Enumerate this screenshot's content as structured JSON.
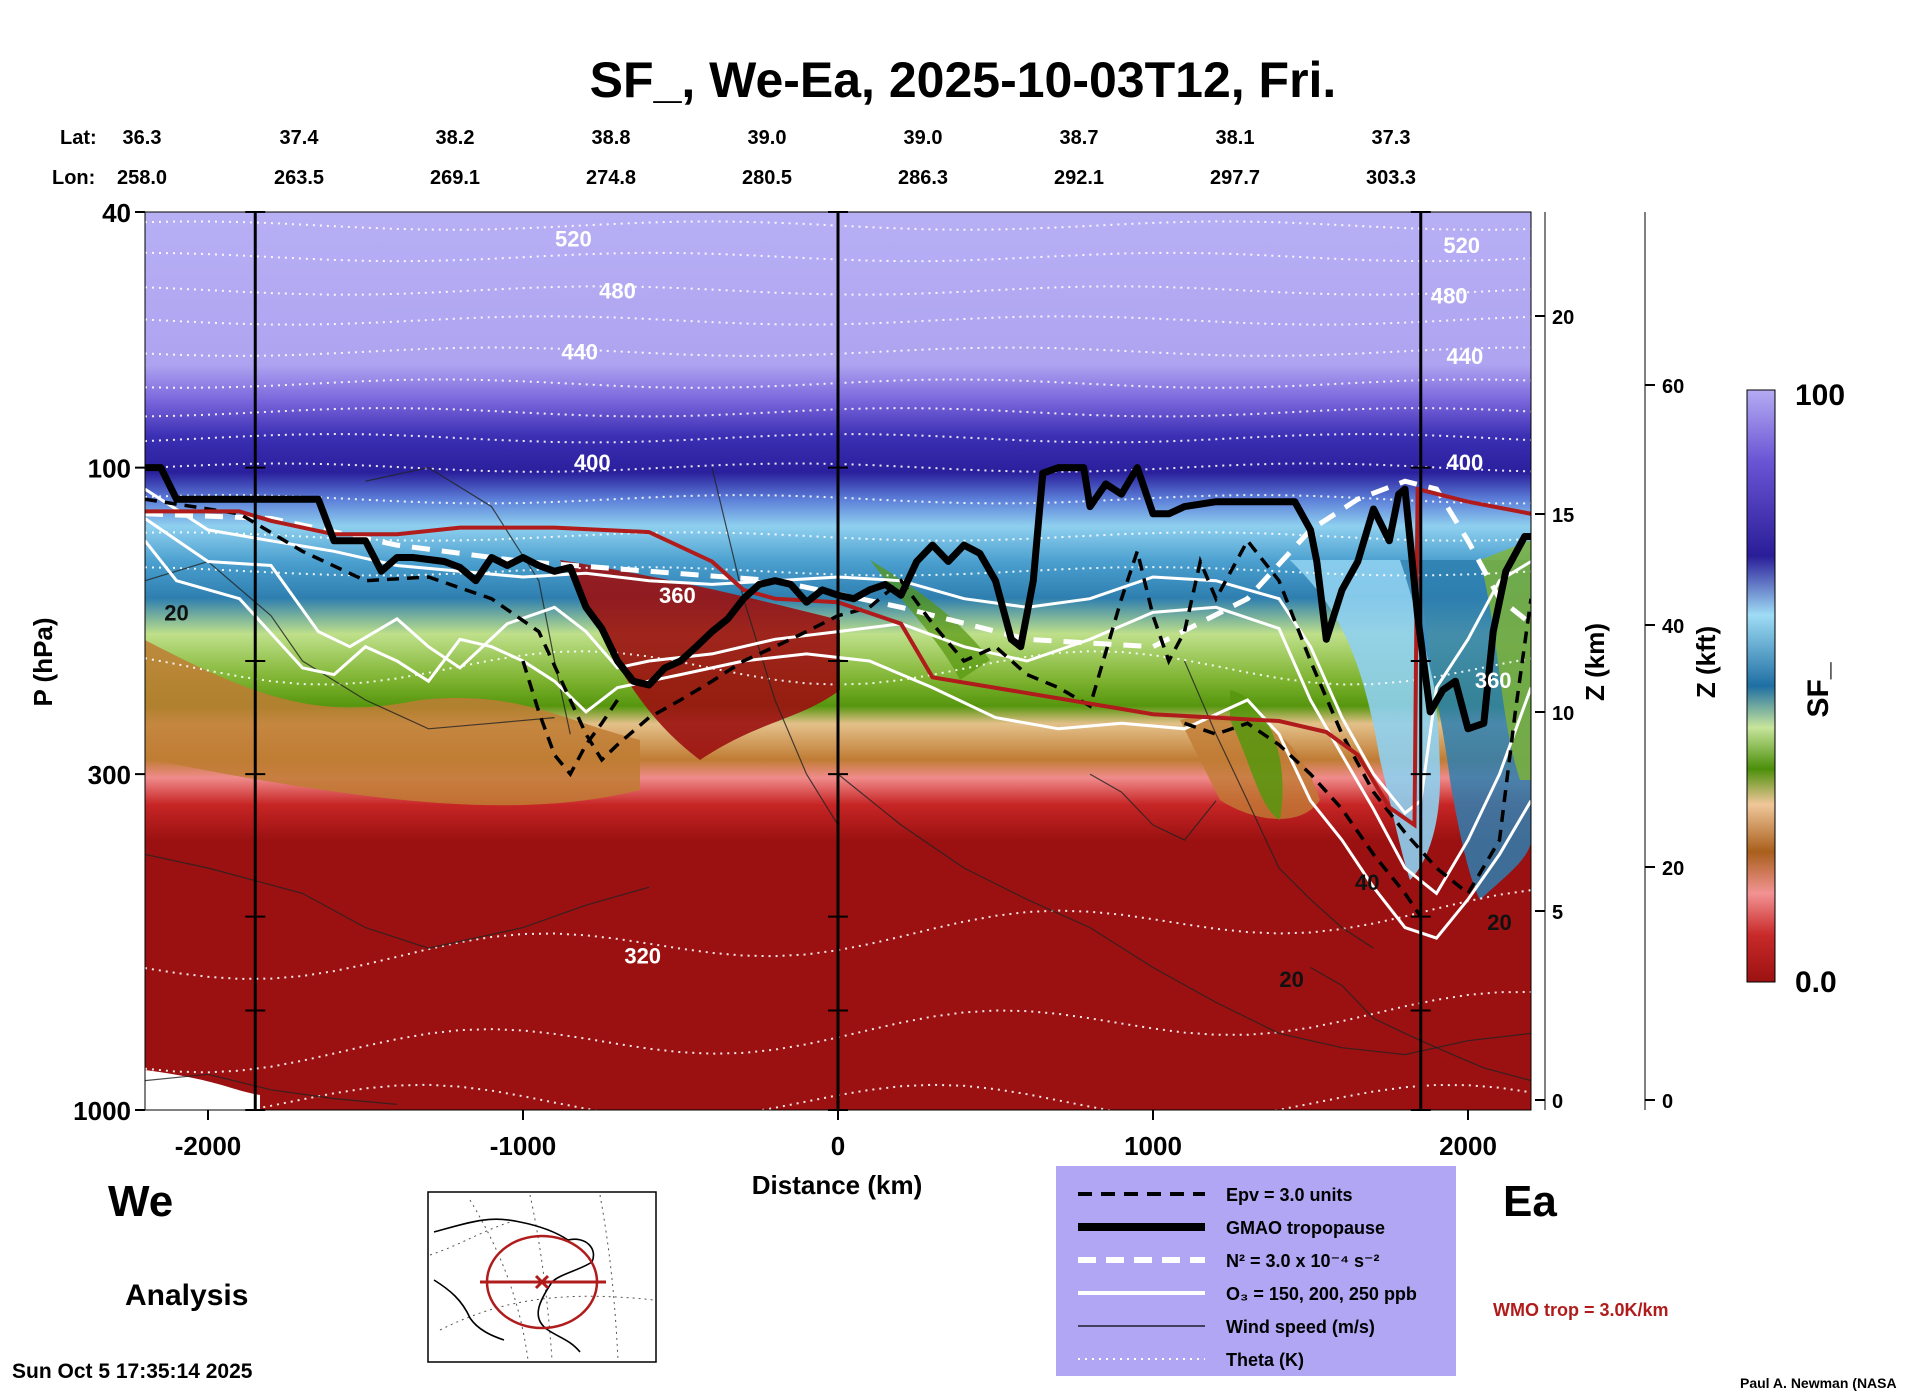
{
  "title": "SF_, We-Ea, 2025-10-03T12, Fri.",
  "lat_label": "Lat:",
  "lon_label": "Lon:",
  "positions": [
    {
      "lat": "36.3",
      "lon": "258.0"
    },
    {
      "lat": "37.4",
      "lon": "263.5"
    },
    {
      "lat": "38.2",
      "lon": "269.1"
    },
    {
      "lat": "38.8",
      "lon": "274.8"
    },
    {
      "lat": "39.0",
      "lon": "280.5"
    },
    {
      "lat": "39.0",
      "lon": "286.3"
    },
    {
      "lat": "38.7",
      "lon": "292.1"
    },
    {
      "lat": "38.1",
      "lon": "297.7"
    },
    {
      "lat": "37.3",
      "lon": "303.3"
    }
  ],
  "side_labels": {
    "west": "We",
    "east": "Ea"
  },
  "analysis_label": "Analysis",
  "timestamp": "Sun Oct  5 17:35:14 2025",
  "credit": "Paul A. Newman (NASA",
  "wmo_label": "WMO trop = 3.0K/km",
  "colors": {
    "background_top": "#b0a6f3",
    "stratosphere": "#3b2fb3",
    "troposphere": "#9b1111",
    "legend_bg": "#b0a6f3",
    "wmo": "#b01c1c"
  },
  "legend": [
    {
      "label": "Epv = 3.0 units",
      "style": "dashed-black"
    },
    {
      "label": "GMAO tropopause",
      "style": "thick-black"
    },
    {
      "label": "N² = 3.0 x 10⁻⁴ s⁻²",
      "style": "dashed-white"
    },
    {
      "label": "O₃ = 150, 200, 250 ppb",
      "style": "solid-white"
    },
    {
      "label": "Wind speed (m/s)",
      "style": "thin-black"
    },
    {
      "label": "Theta (K)",
      "style": "dotted-white"
    }
  ],
  "chart_data": {
    "type": "heatmap",
    "title": "SF_, We-Ea, 2025-10-03T12, Fri.",
    "xlabel": "Distance (km)",
    "ylabel": "P (hPa)",
    "y2label": "Z (km)",
    "y3label": "Z (kft)",
    "xlim": [
      -2200,
      2200
    ],
    "ylim": [
      1000,
      40
    ],
    "y_scale": "log",
    "x_ticks": [
      "-2000",
      "-1000",
      "0",
      "1000",
      "2000"
    ],
    "x_tick_values": [
      -2000,
      -1000,
      0,
      1000,
      2000
    ],
    "p_ticks": [
      "40",
      "100",
      "300",
      "1000"
    ],
    "p_tick_values": [
      40,
      100,
      300,
      1000
    ],
    "z_km_ticks": [
      "0",
      "5",
      "10",
      "15",
      "20"
    ],
    "z_kft_ticks": [
      "0",
      "20",
      "40",
      "60"
    ],
    "vertical_lines_km": [
      -1850,
      0,
      1850
    ],
    "colorbar": {
      "label": "SF_",
      "min": "0.0",
      "max": "100"
    },
    "theta_labels": [
      {
        "text": "520",
        "x": -840,
        "p": 44
      },
      {
        "text": "520",
        "x": 1980,
        "p": 45
      },
      {
        "text": "480",
        "x": -700,
        "p": 53
      },
      {
        "text": "480",
        "x": 1940,
        "p": 54
      },
      {
        "text": "440",
        "x": -820,
        "p": 66
      },
      {
        "text": "440",
        "x": 1990,
        "p": 67
      },
      {
        "text": "400",
        "x": -780,
        "p": 98
      },
      {
        "text": "400",
        "x": 1990,
        "p": 98
      },
      {
        "text": "360",
        "x": -510,
        "p": 158
      },
      {
        "text": "360",
        "x": 2080,
        "p": 214
      },
      {
        "text": "320",
        "x": -620,
        "p": 575
      }
    ],
    "wind_labels": [
      {
        "text": "20",
        "x": -2100,
        "p": 168
      },
      {
        "text": "40",
        "x": 1680,
        "p": 442
      },
      {
        "text": "20",
        "x": 1440,
        "p": 625
      },
      {
        "text": "20",
        "x": 2100,
        "p": 510
      }
    ],
    "tropopause_gmao": [
      [
        -2200,
        100
      ],
      [
        -2150,
        100
      ],
      [
        -2100,
        112
      ],
      [
        -1650,
        112
      ],
      [
        -1600,
        130
      ],
      [
        -1500,
        130
      ],
      [
        -1450,
        145
      ],
      [
        -1400,
        138
      ],
      [
        -1350,
        138
      ],
      [
        -1250,
        140
      ],
      [
        -1200,
        143
      ],
      [
        -1150,
        150
      ],
      [
        -1100,
        138
      ],
      [
        -1050,
        142
      ],
      [
        -1000,
        138
      ],
      [
        -950,
        142
      ],
      [
        -900,
        145
      ],
      [
        -850,
        143
      ],
      [
        -800,
        165
      ],
      [
        -750,
        178
      ],
      [
        -700,
        200
      ],
      [
        -650,
        215
      ],
      [
        -600,
        218
      ],
      [
        -550,
        205
      ],
      [
        -500,
        200
      ],
      [
        -450,
        190
      ],
      [
        -400,
        180
      ],
      [
        -350,
        172
      ],
      [
        -300,
        160
      ],
      [
        -250,
        152
      ],
      [
        -200,
        150
      ],
      [
        -150,
        152
      ],
      [
        -100,
        162
      ],
      [
        -50,
        155
      ],
      [
        0,
        158
      ],
      [
        50,
        160
      ],
      [
        100,
        155
      ],
      [
        150,
        152
      ],
      [
        200,
        158
      ],
      [
        250,
        140
      ],
      [
        300,
        132
      ],
      [
        350,
        140
      ],
      [
        400,
        132
      ],
      [
        450,
        136
      ],
      [
        500,
        150
      ],
      [
        550,
        185
      ],
      [
        580,
        190
      ],
      [
        620,
        150
      ],
      [
        650,
        102
      ],
      [
        700,
        100
      ],
      [
        780,
        100
      ],
      [
        800,
        115
      ],
      [
        850,
        106
      ],
      [
        900,
        110
      ],
      [
        950,
        100
      ],
      [
        1000,
        118
      ],
      [
        1050,
        118
      ],
      [
        1100,
        115
      ],
      [
        1200,
        113
      ],
      [
        1300,
        113
      ],
      [
        1450,
        113
      ],
      [
        1500,
        125
      ],
      [
        1520,
        140
      ],
      [
        1550,
        185
      ],
      [
        1600,
        155
      ],
      [
        1650,
        140
      ],
      [
        1700,
        116
      ],
      [
        1750,
        130
      ],
      [
        1780,
        110
      ],
      [
        1800,
        108
      ],
      [
        1840,
        170
      ],
      [
        1880,
        240
      ],
      [
        1920,
        222
      ],
      [
        1960,
        215
      ],
      [
        2000,
        255
      ],
      [
        2050,
        250
      ],
      [
        2080,
        180
      ],
      [
        2120,
        145
      ],
      [
        2180,
        128
      ],
      [
        2200,
        128
      ]
    ],
    "tropopause_wmo": [
      [
        -2200,
        117
      ],
      [
        -1900,
        117
      ],
      [
        -1800,
        121
      ],
      [
        -1600,
        127
      ],
      [
        -1400,
        127
      ],
      [
        -1200,
        124
      ],
      [
        -900,
        124
      ],
      [
        -600,
        126
      ],
      [
        -400,
        140
      ],
      [
        -300,
        155
      ],
      [
        -200,
        160
      ],
      [
        0,
        162
      ],
      [
        200,
        175
      ],
      [
        300,
        212
      ],
      [
        1000,
        242
      ],
      [
        1400,
        248
      ],
      [
        1550,
        258
      ],
      [
        1650,
        280
      ],
      [
        1750,
        338
      ],
      [
        1830,
        360
      ],
      [
        1840,
        108
      ],
      [
        2000,
        113
      ],
      [
        2200,
        118
      ]
    ]
  }
}
